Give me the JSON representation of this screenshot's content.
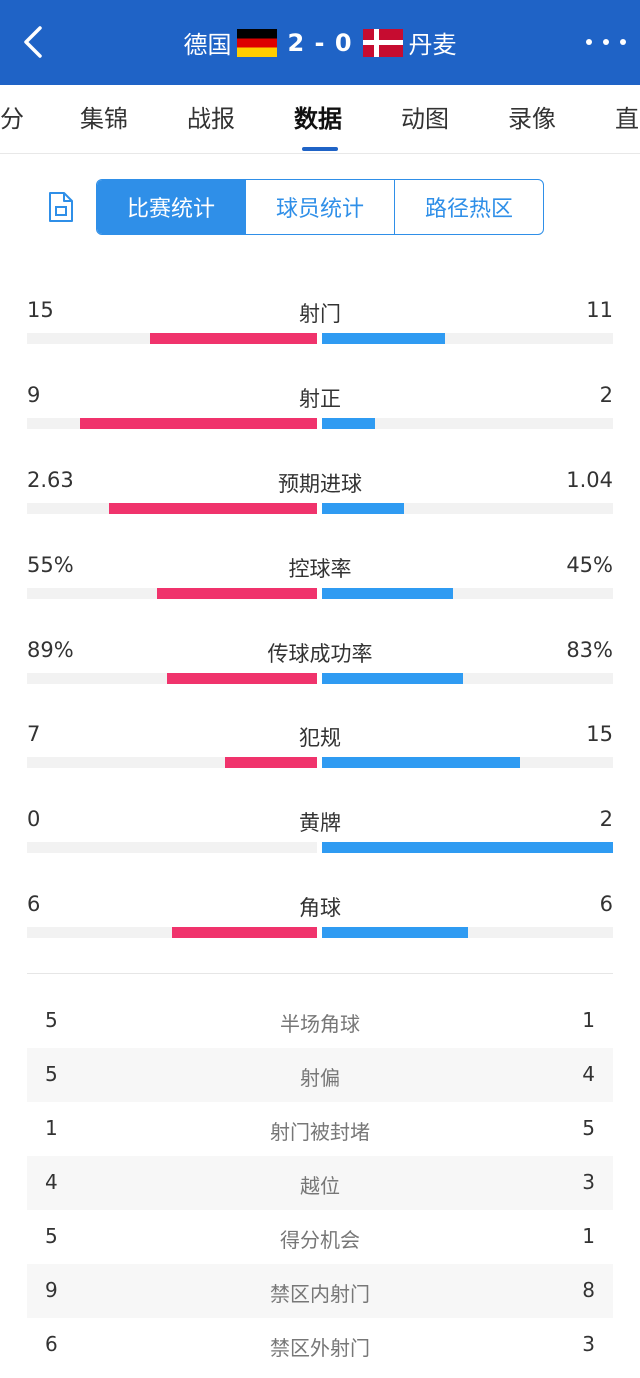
{
  "header": {
    "home_team": "德国",
    "away_team": "丹麦",
    "score": "2 - 0",
    "colors": {
      "background": "#1f63c6"
    }
  },
  "tabs": [
    "分",
    "集锦",
    "战报",
    "数据",
    "动图",
    "录像",
    "直"
  ],
  "active_tab": "数据",
  "segments": [
    "比赛统计",
    "球员统计",
    "路径热区"
  ],
  "active_segment": "比赛统计",
  "colors": {
    "home_bar": "#f0336c",
    "away_bar": "#2f9bf2",
    "accent": "#2f8fe8"
  },
  "stats": [
    {
      "label": "射门",
      "home": "15",
      "away": "11",
      "home_share": 0.577,
      "away_share": 0.423
    },
    {
      "label": "射正",
      "home": "9",
      "away": "2",
      "home_share": 0.818,
      "away_share": 0.182
    },
    {
      "label": "预期进球",
      "home": "2.63",
      "away": "1.04",
      "home_share": 0.717,
      "away_share": 0.283
    },
    {
      "label": "控球率",
      "home": "55%",
      "away": "45%",
      "home_share": 0.55,
      "away_share": 0.45
    },
    {
      "label": "传球成功率",
      "home": "89%",
      "away": "83%",
      "home_share": 0.517,
      "away_share": 0.483
    },
    {
      "label": "犯规",
      "home": "7",
      "away": "15",
      "home_share": 0.318,
      "away_share": 0.682
    },
    {
      "label": "黄牌",
      "home": "0",
      "away": "2",
      "home_share": 0.0,
      "away_share": 1.0
    },
    {
      "label": "角球",
      "home": "6",
      "away": "6",
      "home_share": 0.5,
      "away_share": 0.5
    }
  ],
  "extra_stats": [
    {
      "label": "半场角球",
      "home": "5",
      "away": "1"
    },
    {
      "label": "射偏",
      "home": "5",
      "away": "4"
    },
    {
      "label": "射门被封堵",
      "home": "1",
      "away": "5"
    },
    {
      "label": "越位",
      "home": "4",
      "away": "3"
    },
    {
      "label": "得分机会",
      "home": "5",
      "away": "1"
    },
    {
      "label": "禁区内射门",
      "home": "9",
      "away": "8"
    },
    {
      "label": "禁区外射门",
      "home": "6",
      "away": "3"
    }
  ]
}
